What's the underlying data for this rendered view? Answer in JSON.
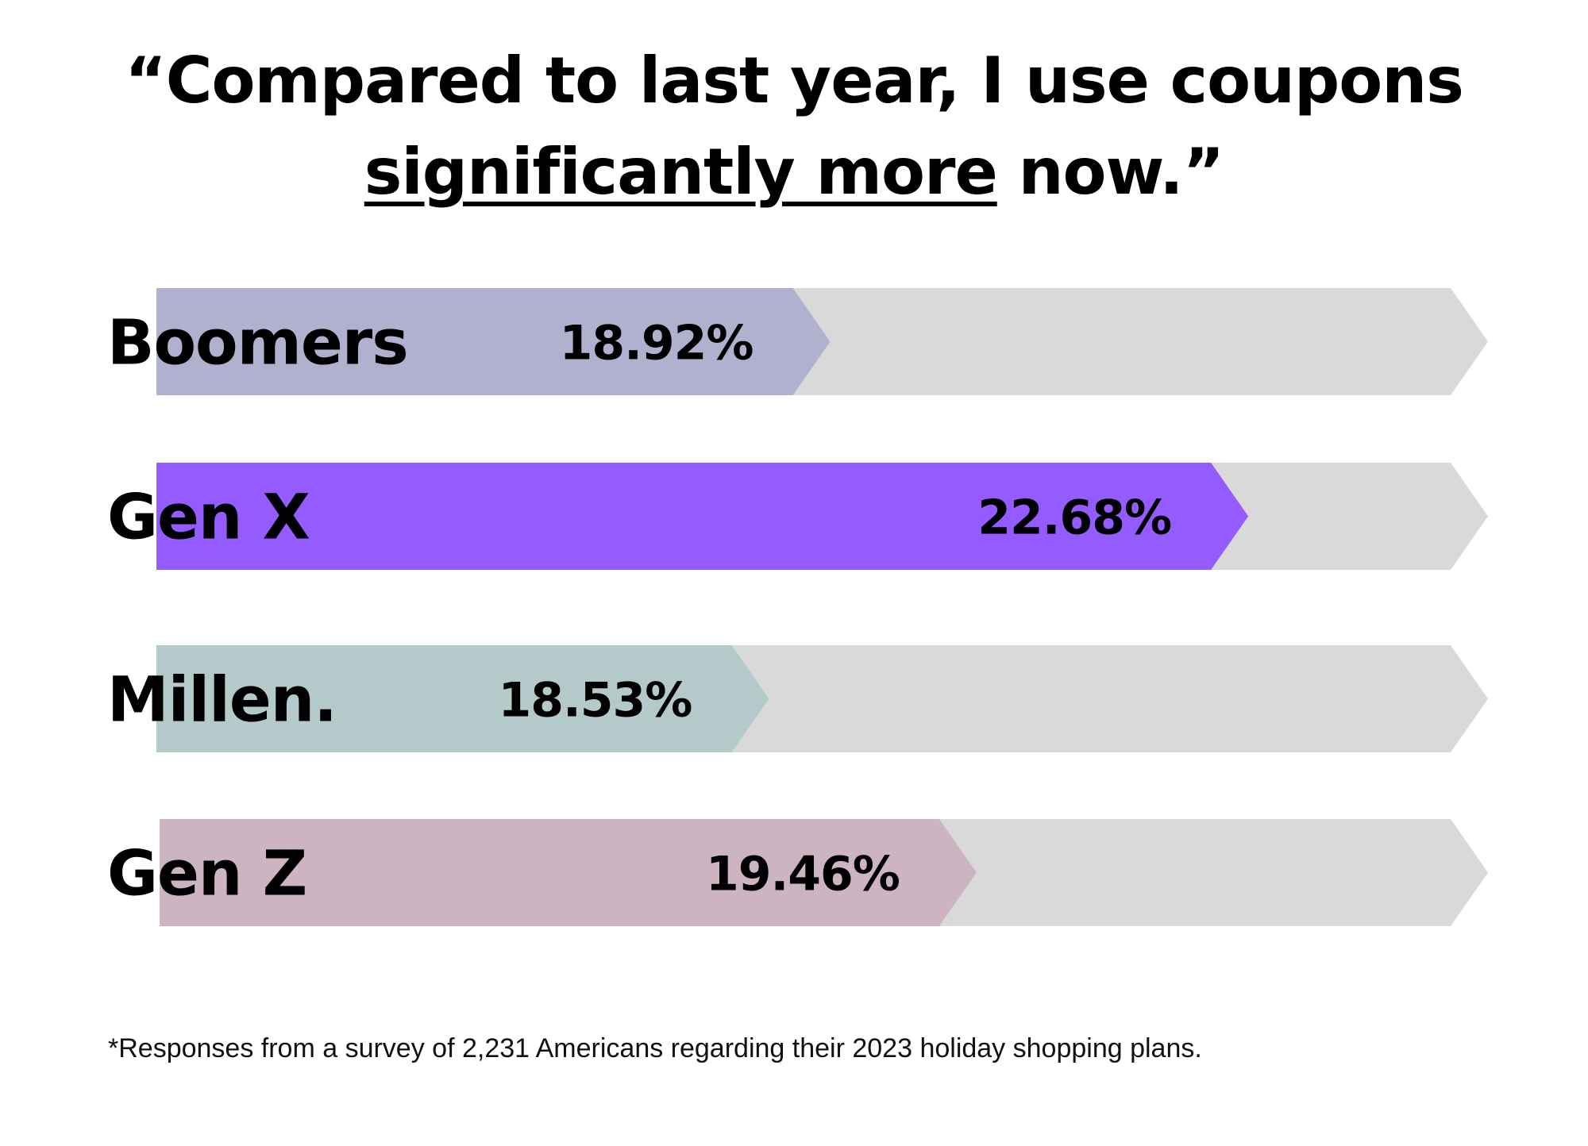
{
  "chart_data": {
    "type": "bar",
    "orientation": "horizontal",
    "title_line1": "“Compared to last year, I use coupons",
    "title_line2_underlined": "significantly more",
    "title_line2_rest": " now.”",
    "categories": [
      "Boomers",
      "Gen X",
      "Millen.",
      "Gen Z"
    ],
    "values": [
      18.92,
      22.68,
      18.53,
      19.46
    ],
    "value_labels": [
      "18.92%",
      "22.68%",
      "18.53%",
      "19.46%"
    ],
    "fill_fraction_shown": [
      0.506,
      0.82,
      0.46,
      0.615
    ],
    "colors": [
      "#b0b1cf",
      "#945cff",
      "#b4c9c9",
      "#cdb4c3"
    ],
    "track_color": "#d9d9d9",
    "grid": false,
    "legend": "none",
    "footnote": "*Responses from a survey of 2,231 Americans regarding their 2023 holiday shopping plans."
  }
}
